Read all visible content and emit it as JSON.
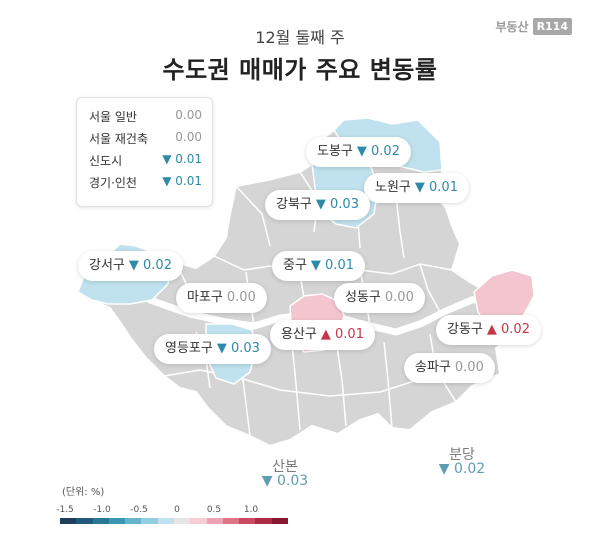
{
  "header": {
    "subtitle": "12월 둘째 주",
    "title": "수도권 매매가 주요 변동률",
    "brand_text": "부동산",
    "brand_box": "R114"
  },
  "summary": [
    {
      "name": "서울 일반",
      "value": "0.00",
      "trend": "flat"
    },
    {
      "name": "서울 재건축",
      "value": "0.00",
      "trend": "flat"
    },
    {
      "name": "신도시",
      "value": "▼ 0.01",
      "trend": "down"
    },
    {
      "name": "경기·인천",
      "value": "▼ 0.01",
      "trend": "down"
    }
  ],
  "districts": {
    "dobong": {
      "name": "도봉구",
      "value": "▼ 0.02",
      "trend": "down"
    },
    "nowon": {
      "name": "노원구",
      "value": "▼ 0.01",
      "trend": "down"
    },
    "gangbuk": {
      "name": "강북구",
      "value": "▼ 0.03",
      "trend": "down"
    },
    "gangseo": {
      "name": "강서구",
      "value": "▼ 0.02",
      "trend": "down"
    },
    "jung": {
      "name": "중구",
      "value": "▼ 0.01",
      "trend": "down"
    },
    "mapo": {
      "name": "마포구",
      "value": "0.00",
      "trend": "flat"
    },
    "seongdong": {
      "name": "성동구",
      "value": "0.00",
      "trend": "flat"
    },
    "yeongdeungpo": {
      "name": "영등포구",
      "value": "▼ 0.03",
      "trend": "down"
    },
    "yongsan": {
      "name": "용산구",
      "value": "▲ 0.01",
      "trend": "up"
    },
    "gangdong": {
      "name": "강동구",
      "value": "▲ 0.02",
      "trend": "up"
    },
    "songpa": {
      "name": "송파구",
      "value": "0.00",
      "trend": "flat"
    }
  },
  "new_towns": {
    "sanbon": {
      "name": "산본",
      "value": "▼ 0.03"
    },
    "bundang": {
      "name": "분당",
      "value": "▼ 0.02"
    }
  },
  "legend": {
    "unit": "(단위: %)",
    "ticks": [
      "-1.5",
      "-1.0",
      "-0.5",
      "0",
      "0.5",
      "1.0"
    ],
    "colors": [
      "#1d3e5c",
      "#23597a",
      "#2a7898",
      "#3a97b4",
      "#66b4cc",
      "#93cde0",
      "#bfe2ee",
      "#e6e6e6",
      "#f6cdd4",
      "#eba3b1",
      "#de7486",
      "#cc4a61",
      "#ad2a44",
      "#86172e"
    ]
  },
  "colors": {
    "base_fill": "#d5d5d5",
    "river": "#ffffff",
    "down_fill": "#bfe2ee",
    "up_fill": "#f3c5ce"
  }
}
